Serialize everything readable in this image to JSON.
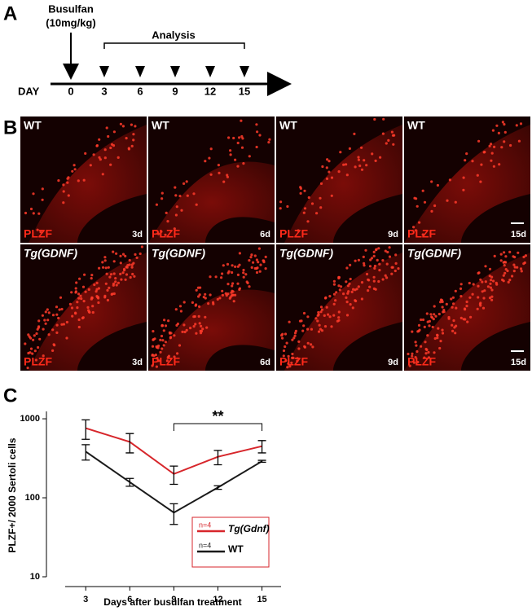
{
  "panel_a": {
    "label": "A",
    "drug": "Busulfan",
    "dose": "(10mg/kg)",
    "analysis": "Analysis",
    "axis_label": "DAY",
    "days": [
      0,
      3,
      6,
      9,
      12,
      15
    ]
  },
  "panel_b": {
    "label": "B",
    "images": [
      {
        "genotype": "WT",
        "stain": "PLZF",
        "day": "3d"
      },
      {
        "genotype": "WT",
        "stain": "PLZF",
        "day": "6d"
      },
      {
        "genotype": "WT",
        "stain": "PLZF",
        "day": "9d"
      },
      {
        "genotype": "WT",
        "stain": "PLZF",
        "day": "15d"
      },
      {
        "genotype": "Tg(GDNF)",
        "stain": "PLZF",
        "day": "3d"
      },
      {
        "genotype": "Tg(GDNF)",
        "stain": "PLZF",
        "day": "6d"
      },
      {
        "genotype": "Tg(GDNF)",
        "stain": "PLZF",
        "day": "9d"
      },
      {
        "genotype": "Tg(GDNF)",
        "stain": "PLZF",
        "day": "15d"
      }
    ]
  },
  "chart_data": {
    "panel_label": "C",
    "type": "line",
    "xlabel": "Days after busulfan treatment",
    "ylabel": "PLZF+/ 2000 Sertoli cells",
    "x": [
      3,
      6,
      9,
      12,
      15
    ],
    "series": [
      {
        "name": "Tg(Gdnf)",
        "n_label": "n=4",
        "color": "#d7262b",
        "values": [
          760,
          510,
          200,
          330,
          450
        ],
        "errors": [
          210,
          140,
          52,
          68,
          80
        ]
      },
      {
        "name": "WT",
        "n_label": "n=4",
        "color": "#1a1a1a",
        "values": [
          385,
          158,
          65,
          135,
          290
        ],
        "errors": [
          85,
          18,
          19,
          7,
          8
        ]
      }
    ],
    "log_y": true,
    "xlim": [
      1.6,
      16.3
    ],
    "ylim": [
      10,
      1240
    ],
    "xticks": [
      3,
      6,
      9,
      12,
      15
    ],
    "yticks": [
      10,
      100,
      1000
    ],
    "annotation": "**",
    "annotation_span": [
      9,
      15
    ]
  }
}
